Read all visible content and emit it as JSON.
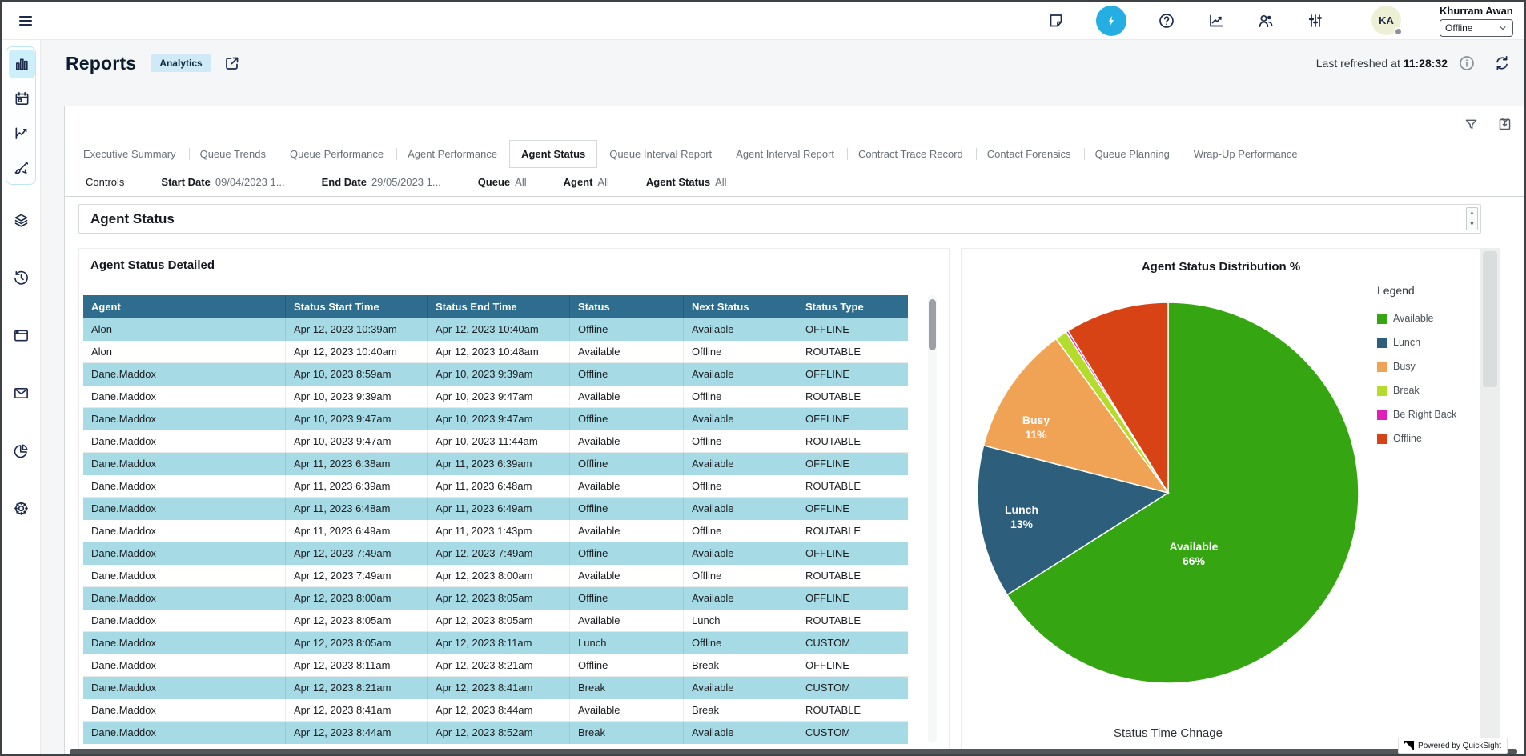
{
  "topbar": {
    "icons": [
      {
        "name": "notes-icon"
      },
      {
        "name": "flash-icon",
        "active": true
      },
      {
        "name": "help-icon"
      },
      {
        "name": "metrics-icon"
      },
      {
        "name": "users-icon"
      },
      {
        "name": "sliders-icon"
      }
    ],
    "user": {
      "initials": "KA",
      "name": "Khurram Awan",
      "status": "Offline"
    },
    "accent_color": "#25aee3"
  },
  "sidebar": {
    "items": [
      {
        "icon": "bar-chart-icon",
        "group": "primary",
        "active": true
      },
      {
        "icon": "calendar-icon",
        "group": "primary"
      },
      {
        "icon": "line-chart-icon",
        "group": "primary"
      },
      {
        "icon": "design-icon",
        "group": "primary"
      },
      {
        "icon": "layers-icon",
        "group": "secondary"
      },
      {
        "icon": "history-icon",
        "group": "secondary"
      },
      {
        "icon": "window-icon",
        "group": "secondary"
      },
      {
        "icon": "mail-icon",
        "group": "secondary"
      },
      {
        "icon": "pie-chart-icon",
        "group": "secondary"
      },
      {
        "icon": "settings-icon",
        "group": "secondary"
      }
    ]
  },
  "header": {
    "title": "Reports",
    "badge": "Analytics",
    "refreshed_label": "Last refreshed at",
    "refreshed_time": "11:28:32"
  },
  "tabs": [
    {
      "label": "Executive Summary"
    },
    {
      "label": "Queue Trends"
    },
    {
      "label": "Queue Performance"
    },
    {
      "label": "Agent Performance"
    },
    {
      "label": "Agent Status",
      "active": true
    },
    {
      "label": "Queue Interval Report"
    },
    {
      "label": "Agent Interval Report"
    },
    {
      "label": "Contract Trace Record"
    },
    {
      "label": "Contact Forensics"
    },
    {
      "label": "Queue Planning"
    },
    {
      "label": "Wrap-Up Performance"
    }
  ],
  "controls": {
    "label": "Controls",
    "filters": [
      {
        "label": "Start Date",
        "value": "09/04/2023 1..."
      },
      {
        "label": "End Date",
        "value": "29/05/2023 1..."
      },
      {
        "label": "Queue",
        "value": "All"
      },
      {
        "label": "Agent",
        "value": "All"
      },
      {
        "label": "Agent Status",
        "value": "All"
      }
    ]
  },
  "sheet": {
    "title": "Agent Status"
  },
  "table": {
    "title": "Agent Status Detailed",
    "columns": [
      "Agent",
      "Status Start Time",
      "Status End Time",
      "Status",
      "Next Status",
      "Status Type"
    ],
    "header_bg": "#2e6d8e",
    "alt_row_bg": "#a6dae4",
    "rows": [
      [
        "Alon",
        "Apr 12, 2023 10:39am",
        "Apr 12, 2023 10:40am",
        "Offline",
        "Available",
        "OFFLINE"
      ],
      [
        "Alon",
        "Apr 12, 2023 10:40am",
        "Apr 12, 2023 10:48am",
        "Available",
        "Offline",
        "ROUTABLE"
      ],
      [
        "Dane.Maddox",
        "Apr 10, 2023 8:59am",
        "Apr 10, 2023 9:39am",
        "Offline",
        "Available",
        "OFFLINE"
      ],
      [
        "Dane.Maddox",
        "Apr 10, 2023 9:39am",
        "Apr 10, 2023 9:47am",
        "Available",
        "Offline",
        "ROUTABLE"
      ],
      [
        "Dane.Maddox",
        "Apr 10, 2023 9:47am",
        "Apr 10, 2023 9:47am",
        "Offline",
        "Available",
        "OFFLINE"
      ],
      [
        "Dane.Maddox",
        "Apr 10, 2023 9:47am",
        "Apr 10, 2023 11:44am",
        "Available",
        "Offline",
        "ROUTABLE"
      ],
      [
        "Dane.Maddox",
        "Apr 11, 2023 6:38am",
        "Apr 11, 2023 6:39am",
        "Offline",
        "Available",
        "OFFLINE"
      ],
      [
        "Dane.Maddox",
        "Apr 11, 2023 6:39am",
        "Apr 11, 2023 6:48am",
        "Available",
        "Offline",
        "ROUTABLE"
      ],
      [
        "Dane.Maddox",
        "Apr 11, 2023 6:48am",
        "Apr 11, 2023 6:49am",
        "Offline",
        "Available",
        "OFFLINE"
      ],
      [
        "Dane.Maddox",
        "Apr 11, 2023 6:49am",
        "Apr 11, 2023 1:43pm",
        "Available",
        "Offline",
        "ROUTABLE"
      ],
      [
        "Dane.Maddox",
        "Apr 12, 2023 7:49am",
        "Apr 12, 2023 7:49am",
        "Offline",
        "Available",
        "OFFLINE"
      ],
      [
        "Dane.Maddox",
        "Apr 12, 2023 7:49am",
        "Apr 12, 2023 8:00am",
        "Available",
        "Offline",
        "ROUTABLE"
      ],
      [
        "Dane.Maddox",
        "Apr 12, 2023 8:00am",
        "Apr 12, 2023 8:05am",
        "Offline",
        "Available",
        "OFFLINE"
      ],
      [
        "Dane.Maddox",
        "Apr 12, 2023 8:05am",
        "Apr 12, 2023 8:05am",
        "Available",
        "Lunch",
        "ROUTABLE"
      ],
      [
        "Dane.Maddox",
        "Apr 12, 2023 8:05am",
        "Apr 12, 2023 8:11am",
        "Lunch",
        "Offline",
        "CUSTOM"
      ],
      [
        "Dane.Maddox",
        "Apr 12, 2023 8:11am",
        "Apr 12, 2023 8:21am",
        "Offline",
        "Break",
        "OFFLINE"
      ],
      [
        "Dane.Maddox",
        "Apr 12, 2023 8:21am",
        "Apr 12, 2023 8:41am",
        "Break",
        "Available",
        "CUSTOM"
      ],
      [
        "Dane.Maddox",
        "Apr 12, 2023 8:41am",
        "Apr 12, 2023 8:44am",
        "Available",
        "Break",
        "ROUTABLE"
      ],
      [
        "Dane.Maddox",
        "Apr 12, 2023 8:44am",
        "Apr 12, 2023 8:52am",
        "Break",
        "Available",
        "CUSTOM"
      ]
    ]
  },
  "chart_data": {
    "type": "pie",
    "title": "Agent Status Distribution %",
    "legend_title": "Legend",
    "legend_position": "right",
    "slices": [
      {
        "label": "Available",
        "value": 66,
        "color": "#35a512"
      },
      {
        "label": "Lunch",
        "value": 13,
        "color": "#2d5f7c"
      },
      {
        "label": "Busy",
        "value": 11,
        "color": "#f0a355"
      },
      {
        "label": "Break",
        "value": 1,
        "color": "#b5dc2c"
      },
      {
        "label": "Be Right Back",
        "value": 0.2,
        "color": "#e01fb8"
      },
      {
        "label": "Offline",
        "value": 8.8,
        "color": "#d84315"
      }
    ],
    "data_labels": [
      {
        "label": "Busy",
        "pct": "11%"
      },
      {
        "label": "Lunch",
        "pct": "13%"
      },
      {
        "label": "Available",
        "pct": "66%"
      }
    ],
    "footer": "Status Time Chnage"
  },
  "footer": {
    "powered_by": "Powered by QuickSight"
  }
}
